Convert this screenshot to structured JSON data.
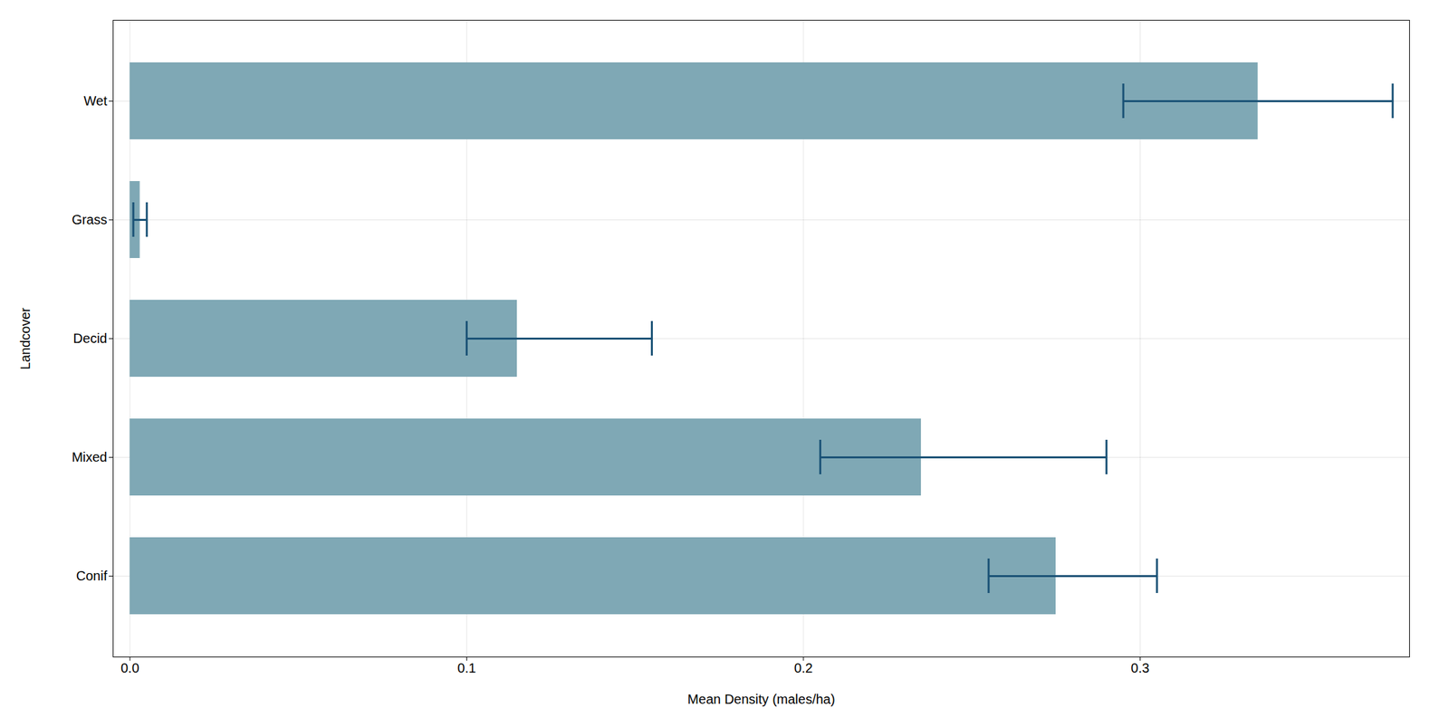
{
  "chart_data": {
    "type": "bar",
    "orientation": "horizontal",
    "categories": [
      "Wet",
      "Grass",
      "Decid",
      "Mixed",
      "Conif"
    ],
    "values": [
      0.335,
      0.003,
      0.115,
      0.235,
      0.275
    ],
    "errors_low": [
      0.04,
      0.002,
      0.015,
      0.03,
      0.02
    ],
    "errors_high": [
      0.04,
      0.002,
      0.04,
      0.055,
      0.03
    ],
    "color": "#7fa8b5",
    "xlabel": "Mean Density (males/ha)",
    "ylabel": "Landcover",
    "xlim": [
      -0.005,
      0.38
    ],
    "xticks": [
      {
        "value": 0,
        "label": "0.0"
      },
      0.1,
      0.2,
      0.3
    ],
    "grid": true
  }
}
